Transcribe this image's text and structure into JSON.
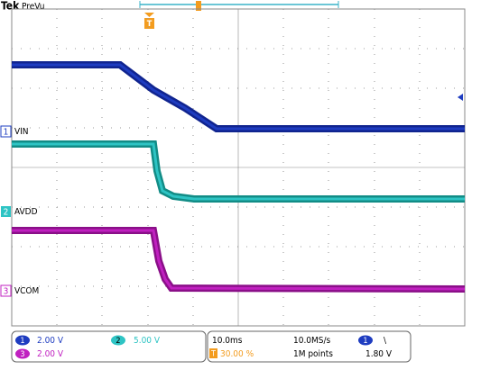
{
  "header": {
    "brand": "Tek",
    "status": "PreVu"
  },
  "trigger_marker": "T",
  "channels": [
    {
      "marker": "1",
      "label": "VIN"
    },
    {
      "marker": "2",
      "label": "AVDD"
    },
    {
      "marker": "3",
      "label": "VCOM"
    }
  ],
  "readout": {
    "channels": [
      {
        "marker": "1",
        "scale": "2.00 V"
      },
      {
        "marker": "2",
        "scale": "5.00 V"
      },
      {
        "marker": "3",
        "scale": "2.00 V"
      }
    ],
    "timebase": "10.0ms",
    "sample_rate": "10.0MS/s",
    "trigger_position_marker": "T",
    "trigger_position": "30.00 %",
    "record_length": "1M points",
    "trigger_source": "1",
    "trigger_slope": "\\",
    "trigger_level": "1.80 V"
  }
}
